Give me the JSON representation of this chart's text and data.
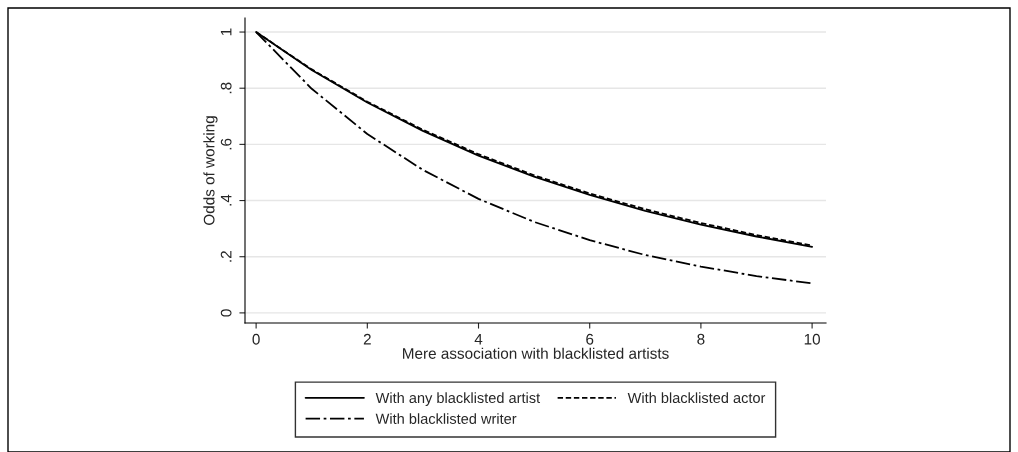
{
  "chart_data": {
    "type": "line",
    "xlabel": "Mere association with blacklisted artists",
    "ylabel": "Odds of working",
    "x": [
      0,
      1,
      2,
      3,
      4,
      5,
      6,
      7,
      8,
      9,
      10
    ],
    "series": [
      {
        "name": "With any blacklisted artist",
        "color": "#000000",
        "line_style": "solid",
        "values": [
          1,
          0.865,
          0.749,
          0.648,
          0.56,
          0.485,
          0.42,
          0.363,
          0.314,
          0.272,
          0.235
        ]
      },
      {
        "name": "With blacklisted actor",
        "color": "#000000",
        "line_style": "dashed",
        "values": [
          1,
          0.867,
          0.752,
          0.652,
          0.565,
          0.49,
          0.425,
          0.369,
          0.32,
          0.277,
          0.24
        ]
      },
      {
        "name": "With blacklisted writer",
        "color": "#000000",
        "line_style": "dashdot",
        "values": [
          1,
          0.798,
          0.637,
          0.509,
          0.406,
          0.324,
          0.259,
          0.206,
          0.165,
          0.131,
          0.105
        ]
      }
    ],
    "xlim": [
      -0.2,
      10.25
    ],
    "xticks": [
      0,
      2,
      4,
      6,
      8,
      10
    ],
    "ylim": [
      -0.036,
      1.05
    ],
    "yticks": [
      {
        "value": 0,
        "label": "0"
      },
      {
        "value": 0.2,
        "label": ".2"
      },
      {
        "value": 0.4,
        "label": ".4"
      },
      {
        "value": 0.6,
        "label": ".6"
      },
      {
        "value": 0.8,
        "label": ".8"
      },
      {
        "value": 1,
        "label": "1"
      }
    ],
    "grid": "y",
    "legend": "bottom",
    "marker": "none"
  }
}
